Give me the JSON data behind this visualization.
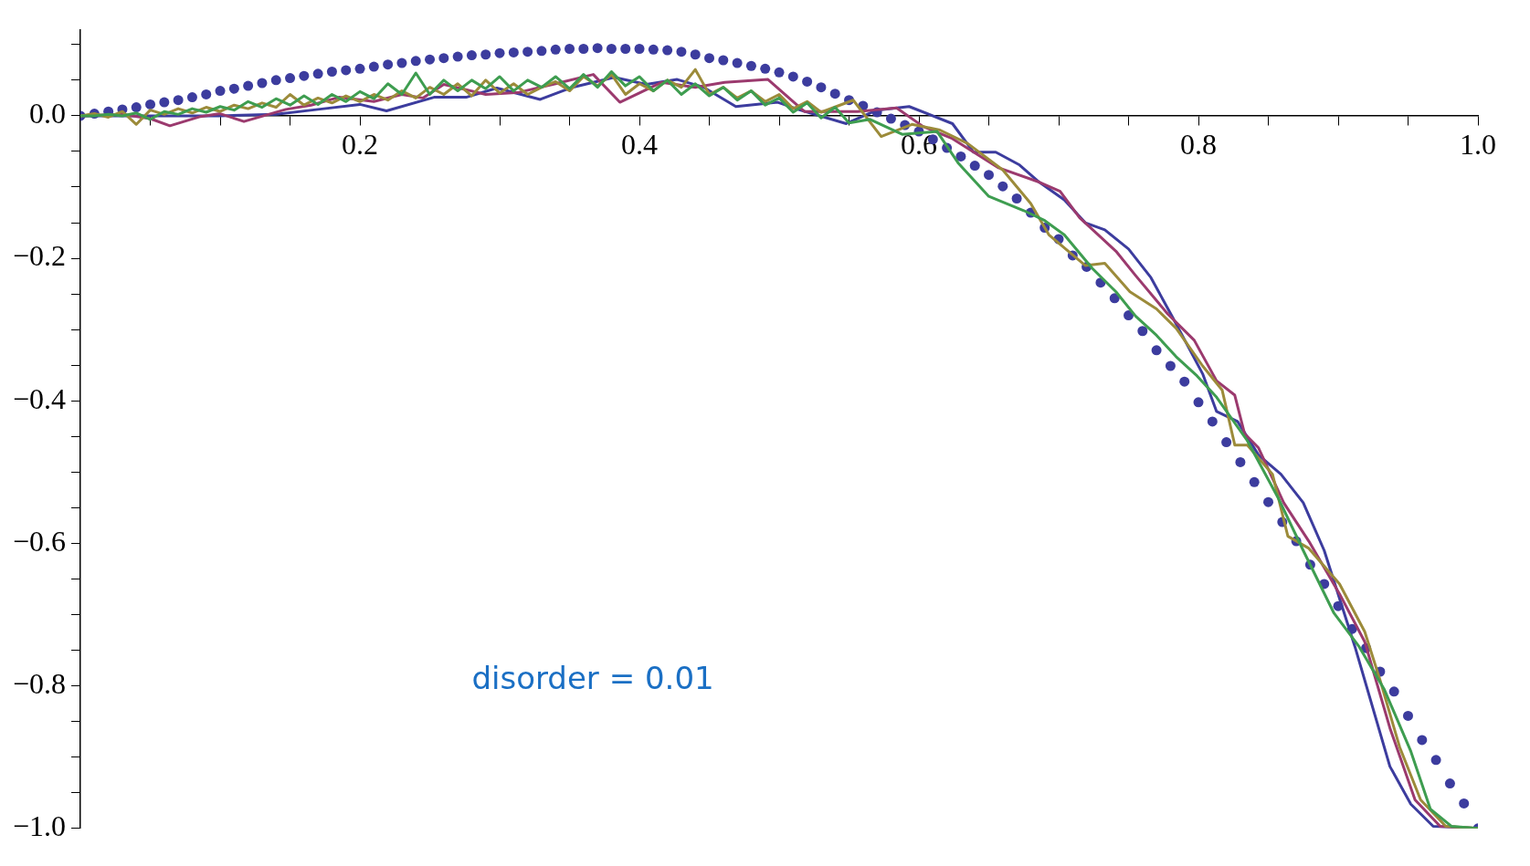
{
  "chart_data": {
    "type": "line",
    "annotations": [
      "disorder = 0.01"
    ],
    "x": [
      0,
      0.01,
      0.02,
      0.03,
      0.04,
      0.05,
      0.06,
      0.07,
      0.08,
      0.09,
      0.1,
      0.11,
      0.12,
      0.13,
      0.14,
      0.15,
      0.16,
      0.17,
      0.18,
      0.19,
      0.2,
      0.21,
      0.22,
      0.23,
      0.24,
      0.25,
      0.26,
      0.27,
      0.28,
      0.29,
      0.3,
      0.31,
      0.32,
      0.33,
      0.34,
      0.35,
      0.36,
      0.37,
      0.38,
      0.39,
      0.4,
      0.41,
      0.42,
      0.43,
      0.44,
      0.45,
      0.46,
      0.47,
      0.48,
      0.49,
      0.5,
      0.51,
      0.52,
      0.53,
      0.54,
      0.55,
      0.56,
      0.57,
      0.58,
      0.59,
      0.6,
      0.61,
      0.62,
      0.63,
      0.64,
      0.65,
      0.66,
      0.67,
      0.68,
      0.69,
      0.7,
      0.71,
      0.72,
      0.73,
      0.74,
      0.75,
      0.76,
      0.77,
      0.78,
      0.79,
      0.8,
      0.81,
      0.82,
      0.83,
      0.84,
      0.85,
      0.86,
      0.87,
      0.88,
      0.89,
      0.9,
      0.91,
      0.92,
      0.93,
      0.94,
      0.95,
      0.96,
      0.97,
      0.98,
      0.99,
      1.0
    ],
    "series": [
      {
        "type": "scatter",
        "marker": "circle",
        "color": "#3c3c9e",
        "values": [
          0,
          0.003,
          0.006,
          0.009,
          0.012,
          0.016,
          0.019,
          0.022,
          0.026,
          0.03,
          0.035,
          0.038,
          0.042,
          0.046,
          0.05,
          0.053,
          0.056,
          0.059,
          0.062,
          0.064,
          0.066,
          0.069,
          0.072,
          0.074,
          0.077,
          0.079,
          0.081,
          0.083,
          0.085,
          0.086,
          0.088,
          0.089,
          0.09,
          0.091,
          0.093,
          0.094,
          0.094,
          0.095,
          0.094,
          0.094,
          0.094,
          0.093,
          0.092,
          0.09,
          0.086,
          0.081,
          0.078,
          0.074,
          0.07,
          0.066,
          0.061,
          0.055,
          0.048,
          0.04,
          0.031,
          0.022,
          0.014,
          0.005,
          -0.004,
          -0.013,
          -0.022,
          -0.033,
          -0.045,
          -0.057,
          -0.07,
          -0.083,
          -0.099,
          -0.116,
          -0.136,
          -0.157,
          -0.173,
          -0.196,
          -0.212,
          -0.234,
          -0.256,
          -0.28,
          -0.302,
          -0.329,
          -0.351,
          -0.373,
          -0.402,
          -0.429,
          -0.458,
          -0.486,
          -0.514,
          -0.542,
          -0.57,
          -0.597,
          -0.63,
          -0.657,
          -0.688,
          -0.72,
          -0.747,
          -0.78,
          -0.808,
          -0.842,
          -0.876,
          -0.904,
          -0.937,
          -0.965,
          -1.0
        ]
      },
      {
        "color": "#3c3c9e",
        "x": [
          0,
          0.033,
          0.1,
          0.14,
          0.17,
          0.2,
          0.219,
          0.253,
          0.276,
          0.298,
          0.329,
          0.352,
          0.382,
          0.405,
          0.427,
          0.446,
          0.469,
          0.499,
          0.515,
          0.548,
          0.57,
          0.593,
          0.624,
          0.639,
          0.655,
          0.672,
          0.686,
          0.704,
          0.719,
          0.733,
          0.75,
          0.766,
          0.781,
          0.803,
          0.813,
          0.828,
          0.843,
          0.859,
          0.875,
          0.89,
          0.912,
          0.937,
          0.952,
          0.968,
          1.0
        ],
        "values": [
          0,
          0,
          0,
          0.002,
          0.009,
          0.016,
          0.007,
          0.026,
          0.026,
          0.039,
          0.023,
          0.04,
          0.054,
          0.044,
          0.051,
          0.04,
          0.013,
          0.019,
          0.008,
          -0.011,
          0.008,
          0.013,
          -0.011,
          -0.051,
          -0.051,
          -0.069,
          -0.093,
          -0.118,
          -0.15,
          -0.16,
          -0.187,
          -0.227,
          -0.281,
          -0.362,
          -0.415,
          -0.429,
          -0.476,
          -0.503,
          -0.543,
          -0.61,
          -0.745,
          -0.913,
          -0.966,
          -0.997,
          -1.0
        ]
      },
      {
        "color": "#9b3a6e",
        "x": [
          0,
          0.03,
          0.05,
          0.064,
          0.086,
          0.1,
          0.117,
          0.147,
          0.165,
          0.185,
          0.21,
          0.23,
          0.245,
          0.26,
          0.29,
          0.314,
          0.34,
          0.367,
          0.386,
          0.416,
          0.44,
          0.461,
          0.492,
          0.518,
          0.556,
          0.584,
          0.603,
          0.624,
          0.657,
          0.686,
          0.701,
          0.715,
          0.741,
          0.755,
          0.778,
          0.797,
          0.813,
          0.826,
          0.833,
          0.843,
          0.861,
          0.879,
          0.901,
          0.919,
          0.937,
          0.955,
          0.973,
          1.0
        ],
        "values": [
          0,
          0.002,
          -0.004,
          -0.014,
          -0.001,
          0.003,
          -0.008,
          0.009,
          0.015,
          0.026,
          0.02,
          0.03,
          0.025,
          0.044,
          0.03,
          0.033,
          0.045,
          0.058,
          0.019,
          0.047,
          0.04,
          0.047,
          0.051,
          0.006,
          0.006,
          0.011,
          -0.015,
          -0.032,
          -0.073,
          -0.093,
          -0.106,
          -0.143,
          -0.19,
          -0.224,
          -0.278,
          -0.315,
          -0.372,
          -0.392,
          -0.446,
          -0.466,
          -0.543,
          -0.597,
          -0.671,
          -0.738,
          -0.859,
          -0.96,
          -0.997,
          -1.0
        ]
      },
      {
        "color": "#9c8b3a",
        "x": [
          0,
          0.01,
          0.02,
          0.03,
          0.04,
          0.05,
          0.06,
          0.07,
          0.08,
          0.09,
          0.1,
          0.11,
          0.12,
          0.13,
          0.14,
          0.15,
          0.16,
          0.17,
          0.18,
          0.19,
          0.2,
          0.21,
          0.22,
          0.23,
          0.24,
          0.25,
          0.26,
          0.27,
          0.28,
          0.29,
          0.3,
          0.31,
          0.32,
          0.33,
          0.34,
          0.35,
          0.36,
          0.37,
          0.38,
          0.39,
          0.4,
          0.41,
          0.42,
          0.43,
          0.44,
          0.45,
          0.46,
          0.47,
          0.48,
          0.49,
          0.5,
          0.51,
          0.52,
          0.53,
          0.553,
          0.573,
          0.595,
          0.615,
          0.635,
          0.66,
          0.68,
          0.693,
          0.719,
          0.733,
          0.751,
          0.77,
          0.784,
          0.803,
          0.817,
          0.826,
          0.835,
          0.853,
          0.864,
          0.879,
          0.901,
          0.919,
          0.93,
          0.944,
          0.959,
          0.977,
          1.0
        ],
        "values": [
          0,
          0.003,
          -0.002,
          0.006,
          -0.012,
          0.008,
          0.002,
          0.01,
          0.004,
          0.012,
          0.006,
          0.015,
          0.01,
          0.018,
          0.012,
          0.03,
          0.015,
          0.025,
          0.018,
          0.028,
          0.02,
          0.03,
          0.022,
          0.035,
          0.025,
          0.04,
          0.03,
          0.045,
          0.028,
          0.05,
          0.032,
          0.045,
          0.03,
          0.04,
          0.048,
          0.035,
          0.055,
          0.042,
          0.058,
          0.03,
          0.045,
          0.035,
          0.05,
          0.04,
          0.065,
          0.03,
          0.04,
          0.025,
          0.035,
          0.02,
          0.03,
          0.01,
          0.02,
          0.005,
          0.022,
          -0.029,
          -0.012,
          -0.02,
          -0.039,
          -0.076,
          -0.123,
          -0.167,
          -0.21,
          -0.207,
          -0.247,
          -0.271,
          -0.298,
          -0.351,
          -0.385,
          -0.462,
          -0.462,
          -0.503,
          -0.59,
          -0.607,
          -0.657,
          -0.724,
          -0.792,
          -0.886,
          -0.96,
          -0.997,
          -1.0
        ]
      },
      {
        "color": "#3e9d50",
        "x": [
          0,
          0.01,
          0.02,
          0.03,
          0.04,
          0.05,
          0.06,
          0.07,
          0.08,
          0.09,
          0.1,
          0.11,
          0.12,
          0.13,
          0.14,
          0.15,
          0.16,
          0.17,
          0.18,
          0.19,
          0.2,
          0.21,
          0.22,
          0.23,
          0.24,
          0.25,
          0.26,
          0.27,
          0.28,
          0.29,
          0.3,
          0.31,
          0.32,
          0.33,
          0.34,
          0.35,
          0.36,
          0.37,
          0.38,
          0.39,
          0.4,
          0.41,
          0.42,
          0.43,
          0.44,
          0.45,
          0.46,
          0.47,
          0.48,
          0.49,
          0.5,
          0.51,
          0.52,
          0.53,
          0.54,
          0.55,
          0.565,
          0.588,
          0.613,
          0.628,
          0.65,
          0.675,
          0.69,
          0.704,
          0.724,
          0.741,
          0.755,
          0.77,
          0.784,
          0.799,
          0.813,
          0.835,
          0.857,
          0.875,
          0.897,
          0.915,
          0.933,
          0.952,
          0.966,
          0.981,
          1.0
        ],
        "values": [
          0,
          0,
          0.002,
          0,
          0.004,
          -0.005,
          0.006,
          0.002,
          0.01,
          0.005,
          0.013,
          0.008,
          0.02,
          0.012,
          0.024,
          0.015,
          0.028,
          0.016,
          0.03,
          0.02,
          0.034,
          0.024,
          0.045,
          0.03,
          0.06,
          0.03,
          0.05,
          0.035,
          0.05,
          0.038,
          0.055,
          0.035,
          0.05,
          0.04,
          0.055,
          0.038,
          0.058,
          0.04,
          0.062,
          0.042,
          0.055,
          0.035,
          0.05,
          0.03,
          0.045,
          0.028,
          0.04,
          0.022,
          0.035,
          0.015,
          0.025,
          0.005,
          0.018,
          -0.003,
          0.012,
          -0.01,
          -0.005,
          -0.026,
          -0.022,
          -0.066,
          -0.113,
          -0.133,
          -0.147,
          -0.167,
          -0.214,
          -0.247,
          -0.281,
          -0.308,
          -0.338,
          -0.365,
          -0.395,
          -0.456,
          -0.536,
          -0.61,
          -0.698,
          -0.745,
          -0.805,
          -0.892,
          -0.973,
          -0.997,
          -1.0
        ]
      }
    ],
    "marker": "none",
    "line_style": "solid",
    "legend": false,
    "grid": false,
    "xlim": [
      0,
      1.0
    ],
    "xticks": [
      {
        "value": 0.05,
        "label": null
      },
      {
        "value": 0.1,
        "label": null
      },
      {
        "value": 0.15,
        "label": null
      },
      {
        "value": 0.2,
        "label": "0.2"
      },
      {
        "value": 0.25,
        "label": null
      },
      {
        "value": 0.3,
        "label": null
      },
      {
        "value": 0.35,
        "label": null
      },
      {
        "value": 0.4,
        "label": "0.4"
      },
      {
        "value": 0.45,
        "label": null
      },
      {
        "value": 0.5,
        "label": null
      },
      {
        "value": 0.55,
        "label": null
      },
      {
        "value": 0.6,
        "label": "0.6"
      },
      {
        "value": 0.65,
        "label": null
      },
      {
        "value": 0.7,
        "label": null
      },
      {
        "value": 0.75,
        "label": null
      },
      {
        "value": 0.8,
        "label": "0.8"
      },
      {
        "value": 0.85,
        "label": null
      },
      {
        "value": 0.9,
        "label": null
      },
      {
        "value": 0.95,
        "label": null
      },
      {
        "value": 1.0,
        "label": "1.0"
      }
    ],
    "ylim": [
      -1.0,
      0.12
    ],
    "yticks": [
      {
        "value": 0.1,
        "label": null
      },
      {
        "value": 0.05,
        "label": null
      },
      {
        "value": 0,
        "label": "0.0"
      },
      {
        "value": -0.05,
        "label": null
      },
      {
        "value": -0.1,
        "label": null
      },
      {
        "value": -0.15,
        "label": null
      },
      {
        "value": -0.2,
        "label": "−0.2"
      },
      {
        "value": -0.25,
        "label": null
      },
      {
        "value": -0.3,
        "label": null
      },
      {
        "value": -0.35,
        "label": null
      },
      {
        "value": -0.4,
        "label": "−0.4"
      },
      {
        "value": -0.45,
        "label": null
      },
      {
        "value": -0.5,
        "label": null
      },
      {
        "value": -0.55,
        "label": null
      },
      {
        "value": -0.6,
        "label": "−0.6"
      },
      {
        "value": -0.65,
        "label": null
      },
      {
        "value": -0.7,
        "label": null
      },
      {
        "value": -0.75,
        "label": null
      },
      {
        "value": -0.8,
        "label": "−0.8"
      },
      {
        "value": -0.85,
        "label": null
      },
      {
        "value": -0.9,
        "label": null
      },
      {
        "value": -0.95,
        "label": null
      },
      {
        "value": -1.0,
        "label": "−1.0"
      }
    ]
  }
}
